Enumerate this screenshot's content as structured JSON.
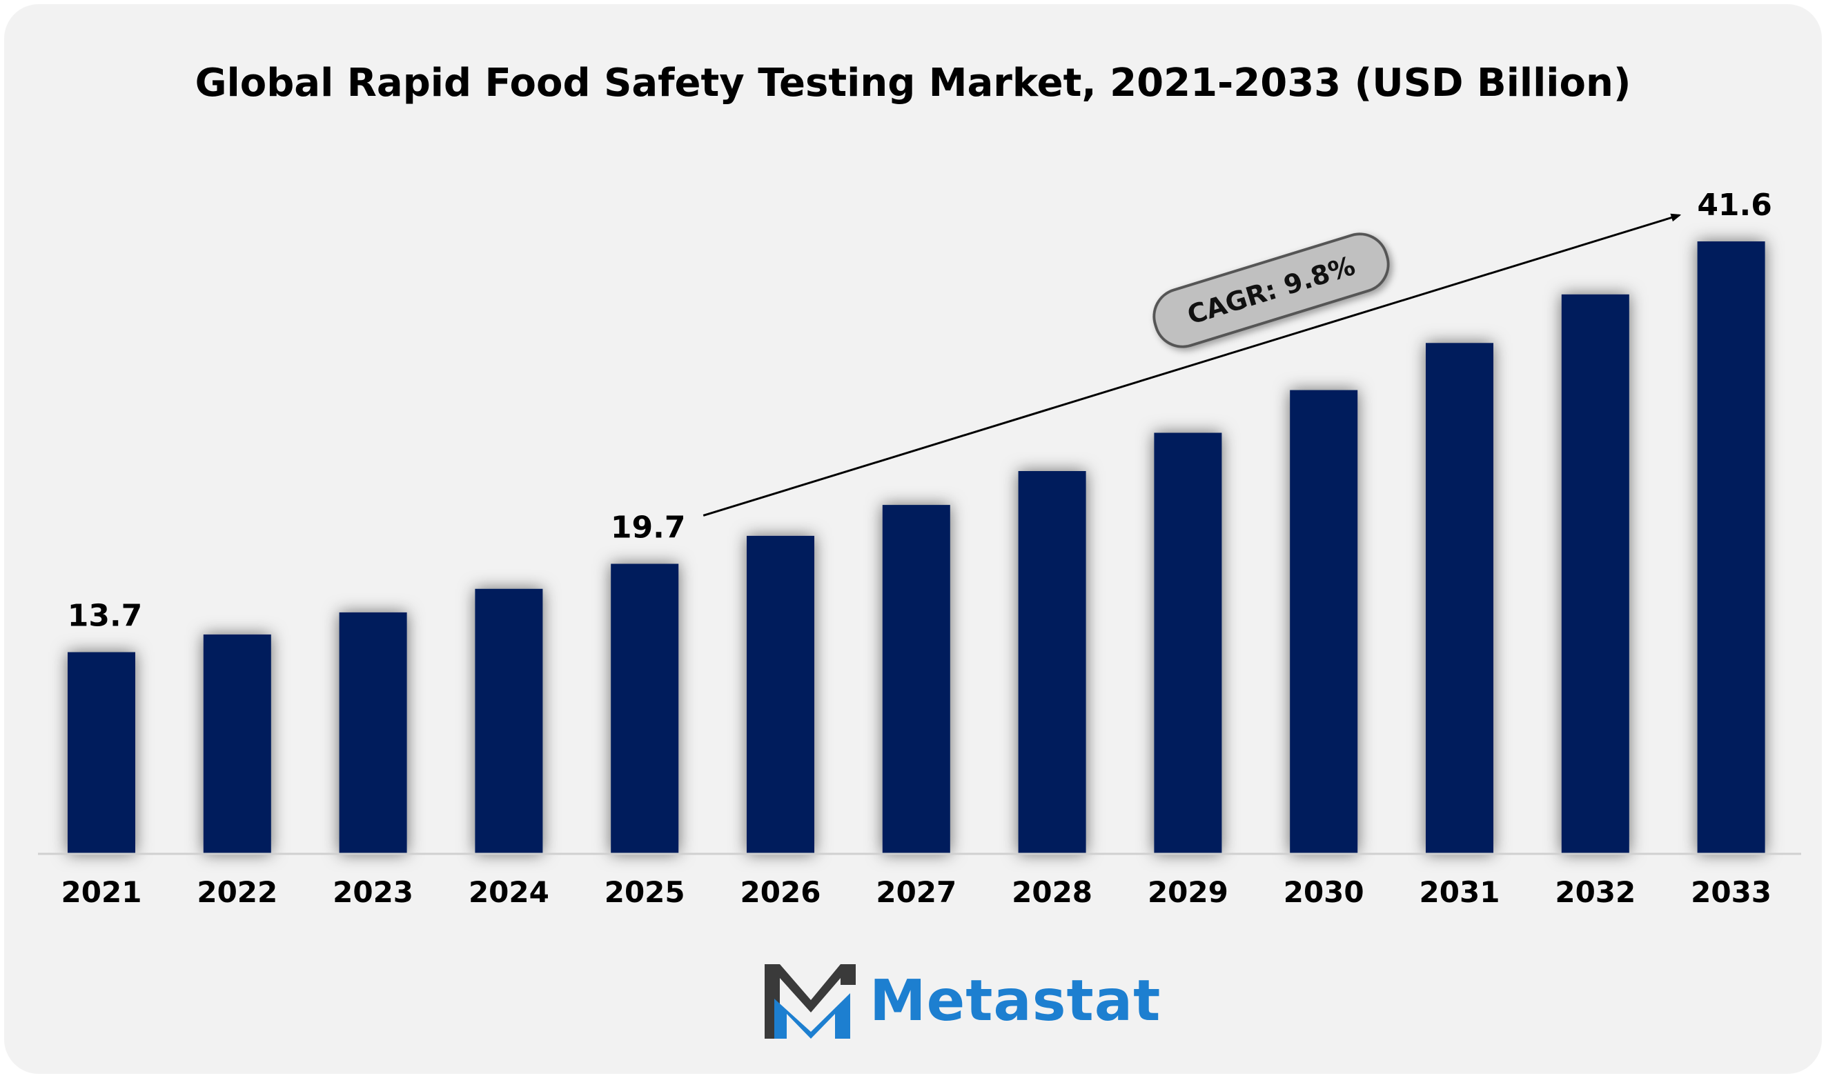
{
  "chart_data": {
    "type": "bar",
    "title": "Global Rapid Food Safety Testing Market, 2021-2033 (USD Billion)",
    "categories": [
      "2021",
      "2022",
      "2023",
      "2024",
      "2025",
      "2026",
      "2027",
      "2028",
      "2029",
      "2030",
      "2031",
      "2032",
      "2033"
    ],
    "values": [
      13.7,
      14.9,
      16.4,
      18.0,
      19.7,
      21.6,
      23.7,
      26.0,
      28.6,
      31.5,
      34.7,
      38.0,
      41.6
    ],
    "data_labels": [
      {
        "category": "2021",
        "text": "13.7"
      },
      {
        "category": "2025",
        "text": "19.7"
      },
      {
        "category": "2033",
        "text": "41.6"
      }
    ],
    "annotation": {
      "text": "CAGR: 9.8%",
      "from": "2025",
      "to": "2033"
    },
    "ylim": [
      0,
      45
    ],
    "grid": false,
    "colors": {
      "bar": "#041f5c",
      "arrow": "#000000",
      "badge_fill": "#c0c0c0",
      "badge_stroke": "#555555"
    }
  },
  "logo": {
    "text": "Metastat",
    "colors": {
      "dark": "#3a3a3a",
      "blue": "#1d7fd0"
    }
  }
}
